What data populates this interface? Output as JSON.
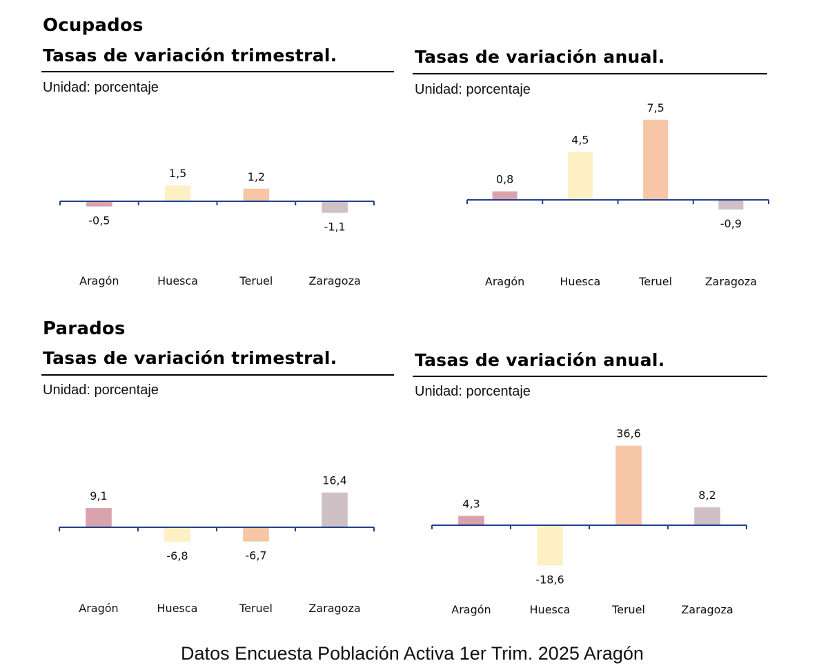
{
  "sections": {
    "ocupados": "Ocupados",
    "parados": "Parados"
  },
  "panel_titles": {
    "trimestral": "Tasas de variación trimestral.",
    "anual": "Tasas de variación anual."
  },
  "unit_label": "Unidad: porcentaje",
  "footer": "Datos Encuesta Población Activa 1er Trim. 2025 Aragón",
  "colors": {
    "Aragón": "#d9a3ad",
    "Huesca": "#fdf0c4",
    "Teruel": "#f6c6a6",
    "Zaragoza": "#cfc0c6",
    "axis": "#1f3f8f"
  },
  "chart_data": [
    {
      "type": "bar",
      "group": "Ocupados",
      "title": "Tasas de variación trimestral.",
      "unit": "Unidad: porcentaje",
      "categories": [
        "Aragón",
        "Huesca",
        "Teruel",
        "Zaragoza"
      ],
      "values": [
        -0.5,
        1.5,
        1.2,
        -1.1
      ],
      "value_labels": [
        "-0,5",
        "1,5",
        "1,2",
        "-1,1"
      ],
      "ylim": [
        -5.5,
        7.0
      ],
      "grid": false
    },
    {
      "type": "bar",
      "group": "Ocupados",
      "title": "Tasas de variación anual.",
      "unit": "Unidad: porcentaje",
      "categories": [
        "Aragón",
        "Huesca",
        "Teruel",
        "Zaragoza"
      ],
      "values": [
        0.8,
        4.5,
        7.5,
        -0.9
      ],
      "value_labels": [
        "0,8",
        "4,5",
        "7,5",
        "-0,9"
      ],
      "ylim": [
        -5.5,
        7.8
      ],
      "grid": false
    },
    {
      "type": "bar",
      "group": "Parados",
      "title": "Tasas de variación trimestral.",
      "unit": "Unidad: porcentaje",
      "categories": [
        "Aragón",
        "Huesca",
        "Teruel",
        "Zaragoza"
      ],
      "values": [
        9.1,
        -6.8,
        -6.7,
        16.4
      ],
      "value_labels": [
        "9,1",
        "-6,8",
        "-6,7",
        "16,4"
      ],
      "ylim": [
        -37,
        33
      ],
      "grid": false
    },
    {
      "type": "bar",
      "group": "Parados",
      "title": "Tasas de variación anual.",
      "unit": "Unidad: porcentaje",
      "categories": [
        "Aragón",
        "Huesca",
        "Teruel",
        "Zaragoza"
      ],
      "values": [
        4.3,
        -18.6,
        36.6,
        8.2
      ],
      "value_labels": [
        "4,3",
        "-18,6",
        "36,6",
        "8,2"
      ],
      "ylim": [
        -40,
        40
      ],
      "grid": false
    }
  ]
}
